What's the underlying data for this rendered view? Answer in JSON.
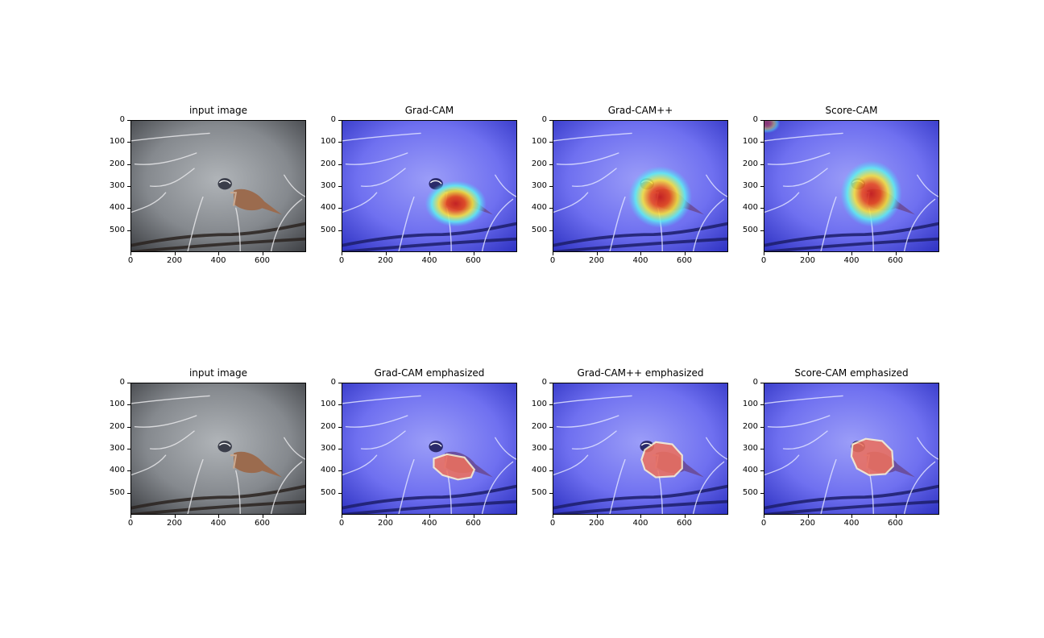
{
  "chart_data": [
    {
      "type": "heatmap",
      "variant": "image",
      "title": "input image",
      "xticks": [
        0,
        200,
        400,
        600
      ],
      "yticks": [
        0,
        100,
        200,
        300,
        400,
        500
      ],
      "xlim": [
        0,
        800
      ],
      "ylim": [
        600,
        0
      ],
      "overlay": "none"
    },
    {
      "type": "heatmap",
      "variant": "heat",
      "title": "Grad-CAM",
      "xticks": [
        0,
        200,
        400,
        600
      ],
      "yticks": [
        0,
        100,
        200,
        300,
        400,
        500
      ],
      "xlim": [
        0,
        800
      ],
      "ylim": [
        600,
        0
      ],
      "overlay": "jet",
      "hotspot": {
        "x": 520,
        "y": 380,
        "rx": 140,
        "ry": 105
      }
    },
    {
      "type": "heatmap",
      "variant": "heat",
      "title": "Grad-CAM++",
      "xticks": [
        0,
        200,
        400,
        600
      ],
      "yticks": [
        0,
        100,
        200,
        300,
        400,
        500
      ],
      "xlim": [
        0,
        800
      ],
      "ylim": [
        600,
        0
      ],
      "overlay": "jet",
      "hotspot": {
        "x": 490,
        "y": 350,
        "rx": 145,
        "ry": 140
      }
    },
    {
      "type": "heatmap",
      "variant": "heat",
      "title": "Score-CAM",
      "xticks": [
        0,
        200,
        400,
        600
      ],
      "yticks": [
        0,
        100,
        200,
        300,
        400,
        500
      ],
      "xlim": [
        0,
        800
      ],
      "ylim": [
        600,
        0
      ],
      "overlay": "jet",
      "hotspot": {
        "x": 490,
        "y": 335,
        "rx": 140,
        "ry": 150
      }
    },
    {
      "type": "heatmap",
      "variant": "image",
      "title": "input image",
      "xticks": [
        0,
        200,
        400,
        600
      ],
      "yticks": [
        0,
        100,
        200,
        300,
        400,
        500
      ],
      "xlim": [
        0,
        800
      ],
      "ylim": [
        600,
        0
      ],
      "overlay": "none"
    },
    {
      "type": "heatmap",
      "variant": "emphasized",
      "title": "Grad-CAM emphasized",
      "xticks": [
        0,
        200,
        400,
        600
      ],
      "yticks": [
        0,
        100,
        200,
        300,
        400,
        500
      ],
      "xlim": [
        0,
        800
      ],
      "ylim": [
        600,
        0
      ],
      "overlay": "jet",
      "region": [
        [
          420,
          345
        ],
        [
          480,
          325
        ],
        [
          560,
          340
        ],
        [
          605,
          395
        ],
        [
          590,
          430
        ],
        [
          530,
          440
        ],
        [
          460,
          420
        ],
        [
          420,
          385
        ]
      ]
    },
    {
      "type": "heatmap",
      "variant": "emphasized",
      "title": "Grad-CAM++ emphasized",
      "xticks": [
        0,
        200,
        400,
        600
      ],
      "yticks": [
        0,
        100,
        200,
        300,
        400,
        500
      ],
      "xlim": [
        0,
        800
      ],
      "ylim": [
        600,
        0
      ],
      "overlay": "jet",
      "region": [
        [
          420,
          305
        ],
        [
          470,
          270
        ],
        [
          545,
          280
        ],
        [
          590,
          330
        ],
        [
          590,
          390
        ],
        [
          555,
          425
        ],
        [
          470,
          430
        ],
        [
          420,
          395
        ],
        [
          405,
          350
        ]
      ]
    },
    {
      "type": "heatmap",
      "variant": "emphasized",
      "title": "Score-CAM emphasized",
      "xticks": [
        0,
        200,
        400,
        600
      ],
      "yticks": [
        0,
        100,
        200,
        300,
        400,
        500
      ],
      "xlim": [
        0,
        800
      ],
      "ylim": [
        600,
        0
      ],
      "overlay": "jet",
      "region": [
        [
          405,
          280
        ],
        [
          465,
          255
        ],
        [
          540,
          265
        ],
        [
          585,
          310
        ],
        [
          590,
          380
        ],
        [
          555,
          415
        ],
        [
          480,
          420
        ],
        [
          425,
          390
        ],
        [
          400,
          335
        ]
      ]
    }
  ]
}
